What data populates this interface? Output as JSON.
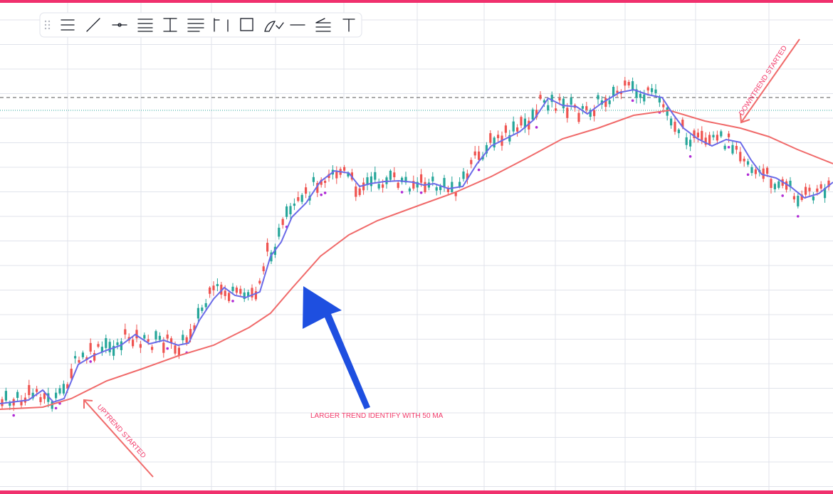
{
  "annotations": {
    "uptrend": "UPTREND STARTED",
    "downtrend": "DOWNTREND STARTED",
    "larger_trend": "LARGER TREND IDENTIFY WITH 50 MA"
  }
}
